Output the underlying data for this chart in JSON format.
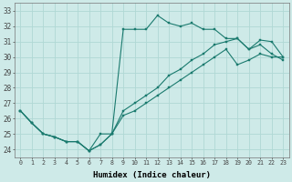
{
  "xlabel": "Humidex (Indice chaleur)",
  "bg_color": "#ceeae8",
  "line_color": "#1a7a6e",
  "grid_color": "#b0d8d4",
  "xlim": [
    -0.5,
    23.5
  ],
  "ylim": [
    23.5,
    33.5
  ],
  "xticks": [
    0,
    1,
    2,
    3,
    4,
    5,
    6,
    7,
    8,
    9,
    10,
    11,
    12,
    13,
    14,
    15,
    16,
    17,
    18,
    19,
    20,
    21,
    22,
    23
  ],
  "yticks": [
    24,
    25,
    26,
    27,
    28,
    29,
    30,
    31,
    32,
    33
  ],
  "line1_x": [
    0,
    1,
    2,
    3,
    4,
    5,
    6,
    7,
    8,
    9,
    10,
    11,
    12,
    13,
    14,
    15,
    16,
    17,
    18,
    19,
    20,
    21,
    22,
    23
  ],
  "line1_y": [
    26.5,
    25.7,
    25.0,
    24.8,
    24.5,
    24.5,
    23.9,
    25.0,
    25.0,
    31.8,
    31.8,
    31.8,
    32.7,
    32.2,
    32.0,
    32.2,
    31.8,
    31.8,
    31.2,
    31.2,
    30.5,
    31.1,
    31.0,
    30.0
  ],
  "line2_x": [
    0,
    1,
    2,
    3,
    4,
    5,
    6,
    7,
    8,
    9,
    10,
    11,
    12,
    13,
    14,
    15,
    16,
    17,
    18,
    19,
    20,
    21,
    22,
    23
  ],
  "line2_y": [
    26.5,
    25.7,
    25.0,
    24.8,
    24.5,
    24.5,
    23.9,
    24.3,
    25.0,
    26.5,
    27.0,
    27.5,
    28.0,
    28.8,
    29.2,
    29.8,
    30.2,
    30.8,
    31.0,
    31.2,
    30.5,
    30.8,
    30.2,
    29.8
  ],
  "line3_x": [
    0,
    1,
    2,
    3,
    4,
    5,
    6,
    7,
    8,
    9,
    10,
    11,
    12,
    13,
    14,
    15,
    16,
    17,
    18,
    19,
    20,
    21,
    22,
    23
  ],
  "line3_y": [
    26.5,
    25.7,
    25.0,
    24.8,
    24.5,
    24.5,
    23.9,
    24.3,
    25.0,
    26.2,
    26.5,
    27.0,
    27.5,
    28.0,
    28.5,
    29.0,
    29.5,
    30.0,
    30.5,
    29.5,
    29.8,
    30.2,
    30.0,
    30.0
  ]
}
